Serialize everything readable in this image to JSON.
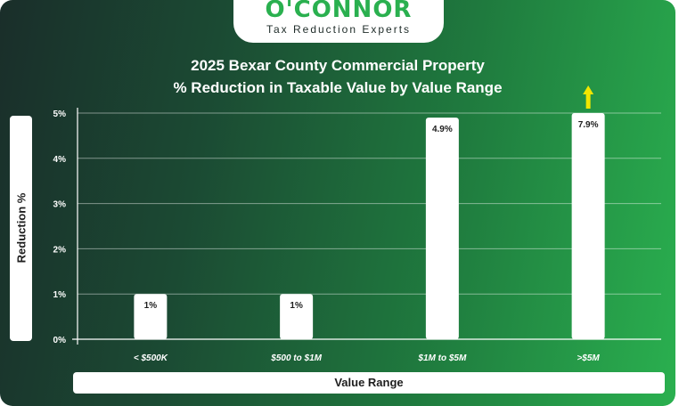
{
  "brand": {
    "name": "O'CONNOR",
    "tagline": "Tax Reduction Experts",
    "color": "#2ab04f"
  },
  "chart_data": {
    "type": "bar",
    "title": "2025 Bexar County Commercial Property",
    "subtitle": "% Reduction in Taxable Value by Value Range",
    "xlabel": "Value Range",
    "ylabel": "Reduction %",
    "categories": [
      "< $500K",
      "$500 to $1M",
      "$1M to $5M",
      ">$5M"
    ],
    "values": [
      1,
      1,
      4.9,
      7.9
    ],
    "data_labels": [
      "1%",
      "1%",
      "4.9%",
      "7.9%"
    ],
    "ylim": [
      0,
      5
    ],
    "yticks": [
      0,
      1,
      2,
      3,
      4,
      5
    ],
    "ytick_labels": [
      "0%",
      "1%",
      "2%",
      "3%",
      "4%",
      "5%"
    ],
    "grid": true,
    "bar_color": "#ffffff",
    "overflow_arrow": {
      "category": ">$5M",
      "color": "#f2e600"
    }
  }
}
